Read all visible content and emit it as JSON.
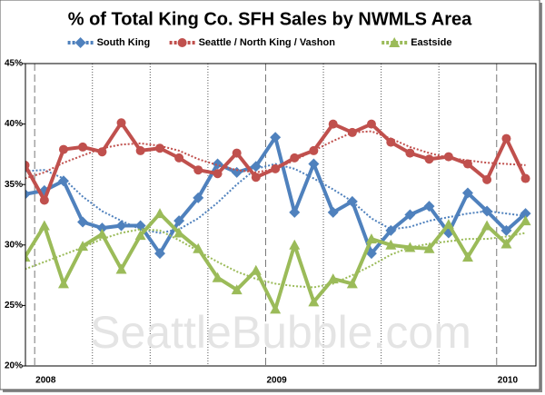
{
  "chart_data": {
    "type": "line",
    "title": "% of Total King Co. SFH Sales by NWMLS Area",
    "watermark": "SeattleBubble.com",
    "x": [
      2007.958,
      2008.042,
      2008.125,
      2008.208,
      2008.292,
      2008.375,
      2008.458,
      2008.542,
      2008.625,
      2008.708,
      2008.792,
      2008.875,
      2008.958,
      2009.042,
      2009.125,
      2009.208,
      2009.292,
      2009.375,
      2009.458,
      2009.542,
      2009.625,
      2009.708,
      2009.792,
      2009.875,
      2009.958,
      2010.042,
      2010.125
    ],
    "xlim": [
      2007.96,
      2010.17
    ],
    "xticks": [
      2008,
      2009,
      2010
    ],
    "xminorticks": [
      2008.25,
      2008.5,
      2008.75,
      2009.25,
      2009.5,
      2009.75
    ],
    "ylim": [
      20,
      45
    ],
    "yticks": [
      {
        "value": 20,
        "label": "20%"
      },
      {
        "value": 25,
        "label": "25%"
      },
      {
        "value": 30,
        "label": "30%"
      },
      {
        "value": 35,
        "label": "35%"
      },
      {
        "value": 40,
        "label": "40%"
      },
      {
        "value": 45,
        "label": "45%"
      }
    ],
    "series": [
      {
        "name": "South King",
        "color": "#4f81bd",
        "marker": "diamond",
        "values": [
          34.2,
          34.5,
          35.3,
          31.9,
          31.4,
          31.6,
          31.6,
          29.3,
          32.0,
          33.9,
          36.7,
          36.0,
          36.5,
          38.9,
          32.7,
          36.7,
          32.7,
          33.6,
          29.3,
          31.2,
          32.5,
          33.2,
          31.0,
          34.3,
          32.8,
          31.2,
          32.6
        ],
        "trend_values": [
          36.1,
          36.2,
          35.5,
          34.0,
          32.8,
          32.0,
          31.3,
          31.0,
          31.3,
          32.2,
          33.5,
          35.0,
          36.3,
          36.7,
          36.3,
          35.5,
          34.6,
          33.6,
          32.2,
          31.3,
          31.5,
          32.0,
          32.3,
          32.6,
          32.8,
          32.6,
          32.4
        ]
      },
      {
        "name": "Seattle / North King / Vashon",
        "color": "#c0504d",
        "marker": "circle",
        "values": [
          36.6,
          33.7,
          37.9,
          38.1,
          37.7,
          40.1,
          37.8,
          38.0,
          37.2,
          36.2,
          35.9,
          37.6,
          35.6,
          36.3,
          37.2,
          37.8,
          40.0,
          39.3,
          40.0,
          38.5,
          37.6,
          37.1,
          37.3,
          36.7,
          35.4,
          38.8,
          35.5
        ],
        "trend_values": [
          35.5,
          36.0,
          36.8,
          37.4,
          38.0,
          38.3,
          38.4,
          38.2,
          37.8,
          37.1,
          36.6,
          36.2,
          36.0,
          36.3,
          37.0,
          37.8,
          38.6,
          39.3,
          39.4,
          38.8,
          38.1,
          37.6,
          37.2,
          37.0,
          36.8,
          36.7,
          36.6
        ]
      },
      {
        "name": "Eastside",
        "color": "#9bbb59",
        "marker": "triangle",
        "values": [
          29.0,
          31.6,
          26.8,
          29.9,
          30.9,
          28.0,
          30.8,
          32.6,
          31.0,
          29.7,
          27.3,
          26.3,
          27.9,
          24.7,
          30.0,
          25.3,
          27.2,
          26.8,
          30.5,
          30.0,
          29.8,
          29.7,
          31.7,
          29.0,
          31.6,
          30.1,
          32.0
        ],
        "trend_values": [
          28.0,
          28.6,
          29.2,
          29.8,
          30.5,
          31.0,
          31.3,
          31.2,
          30.4,
          29.5,
          28.6,
          27.8,
          27.2,
          26.8,
          26.6,
          26.5,
          26.8,
          27.5,
          28.3,
          29.2,
          29.8,
          30.1,
          30.3,
          30.5,
          30.5,
          30.7,
          31.0
        ]
      }
    ]
  }
}
